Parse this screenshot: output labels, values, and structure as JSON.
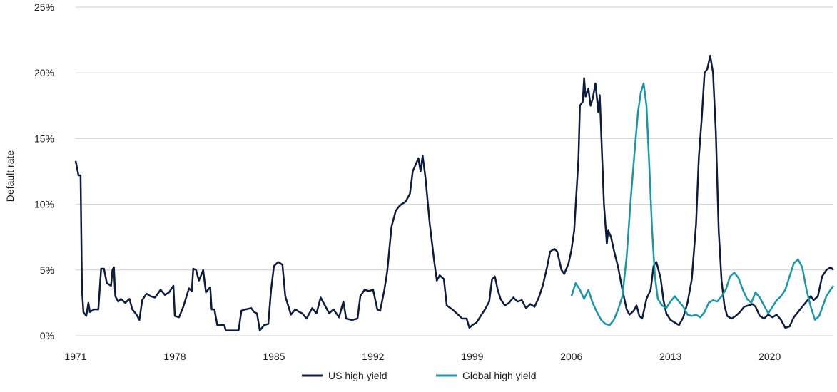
{
  "chart_data": {
    "type": "line",
    "title": "",
    "xlabel": "",
    "ylabel": "Default rate",
    "xlim": [
      1971,
      2024.5
    ],
    "ylim": [
      0,
      25
    ],
    "x_ticks": [
      "1971",
      "1978",
      "1985",
      "1992",
      "1999",
      "2006",
      "2013",
      "2020"
    ],
    "y_ticks": [
      "0%",
      "5%",
      "10%",
      "15%",
      "20%",
      "25%"
    ],
    "y_tick_values": [
      0,
      5,
      10,
      15,
      20,
      25
    ],
    "x_tick_values": [
      1971,
      1978,
      1985,
      1992,
      1999,
      2006,
      2013,
      2020
    ],
    "grid": "horizontal",
    "legend_position": "bottom-center",
    "series": [
      {
        "name": "US high yield",
        "color": "#0d1b3e",
        "points": [
          [
            1971.0,
            13.3
          ],
          [
            1971.2,
            12.2
          ],
          [
            1971.35,
            12.2
          ],
          [
            1971.45,
            3.5
          ],
          [
            1971.55,
            1.8
          ],
          [
            1971.75,
            1.5
          ],
          [
            1971.9,
            2.5
          ],
          [
            1972.0,
            1.8
          ],
          [
            1972.3,
            2.0
          ],
          [
            1972.6,
            2.0
          ],
          [
            1972.8,
            5.1
          ],
          [
            1973.0,
            5.1
          ],
          [
            1973.2,
            4.0
          ],
          [
            1973.5,
            3.8
          ],
          [
            1973.6,
            5.0
          ],
          [
            1973.7,
            5.2
          ],
          [
            1973.8,
            3.0
          ],
          [
            1974.0,
            2.6
          ],
          [
            1974.2,
            2.8
          ],
          [
            1974.5,
            2.5
          ],
          [
            1974.8,
            2.8
          ],
          [
            1975.0,
            2.0
          ],
          [
            1975.3,
            1.6
          ],
          [
            1975.5,
            1.2
          ],
          [
            1975.7,
            2.7
          ],
          [
            1976.0,
            3.2
          ],
          [
            1976.3,
            3.0
          ],
          [
            1976.6,
            2.9
          ],
          [
            1977.0,
            3.5
          ],
          [
            1977.3,
            3.1
          ],
          [
            1977.6,
            3.3
          ],
          [
            1977.9,
            3.8
          ],
          [
            1978.0,
            1.5
          ],
          [
            1978.3,
            1.4
          ],
          [
            1978.6,
            2.2
          ],
          [
            1979.0,
            3.6
          ],
          [
            1979.2,
            3.4
          ],
          [
            1979.3,
            5.1
          ],
          [
            1979.5,
            5.0
          ],
          [
            1979.7,
            4.2
          ],
          [
            1979.9,
            4.7
          ],
          [
            1980.0,
            5.0
          ],
          [
            1980.2,
            3.3
          ],
          [
            1980.5,
            3.7
          ],
          [
            1980.6,
            2.0
          ],
          [
            1980.8,
            2.0
          ],
          [
            1981.0,
            0.8
          ],
          [
            1981.5,
            0.8
          ],
          [
            1981.6,
            0.4
          ],
          [
            1982.0,
            0.4
          ],
          [
            1982.5,
            0.4
          ],
          [
            1982.7,
            1.9
          ],
          [
            1983.0,
            2.0
          ],
          [
            1983.4,
            2.1
          ],
          [
            1983.6,
            1.8
          ],
          [
            1983.8,
            1.7
          ],
          [
            1984.0,
            0.4
          ],
          [
            1984.3,
            0.8
          ],
          [
            1984.6,
            0.9
          ],
          [
            1984.8,
            3.5
          ],
          [
            1985.0,
            5.3
          ],
          [
            1985.3,
            5.6
          ],
          [
            1985.6,
            5.4
          ],
          [
            1985.8,
            3.0
          ],
          [
            1986.0,
            2.3
          ],
          [
            1986.2,
            1.6
          ],
          [
            1986.5,
            2.0
          ],
          [
            1986.8,
            1.8
          ],
          [
            1987.0,
            1.7
          ],
          [
            1987.3,
            1.3
          ],
          [
            1987.7,
            2.1
          ],
          [
            1988.0,
            1.7
          ],
          [
            1988.3,
            2.9
          ],
          [
            1988.6,
            2.3
          ],
          [
            1988.9,
            1.7
          ],
          [
            1989.2,
            2.0
          ],
          [
            1989.6,
            1.4
          ],
          [
            1989.9,
            2.6
          ],
          [
            1990.1,
            1.3
          ],
          [
            1990.5,
            1.2
          ],
          [
            1990.9,
            1.3
          ],
          [
            1991.1,
            3.0
          ],
          [
            1991.4,
            3.5
          ],
          [
            1991.7,
            3.4
          ],
          [
            1992.0,
            3.5
          ],
          [
            1992.3,
            2.0
          ],
          [
            1992.5,
            1.9
          ],
          [
            1992.8,
            3.5
          ],
          [
            1993.0,
            4.9
          ],
          [
            1993.3,
            8.3
          ],
          [
            1993.6,
            9.5
          ],
          [
            1993.8,
            9.8
          ],
          [
            1994.0,
            10.0
          ],
          [
            1994.3,
            10.2
          ],
          [
            1994.6,
            10.8
          ],
          [
            1994.8,
            12.5
          ],
          [
            1995.0,
            13.0
          ],
          [
            1995.2,
            13.5
          ],
          [
            1995.35,
            12.5
          ],
          [
            1995.5,
            13.7
          ],
          [
            1995.7,
            12.0
          ],
          [
            1996.0,
            8.5
          ],
          [
            1996.3,
            5.8
          ],
          [
            1996.5,
            4.2
          ],
          [
            1996.7,
            4.6
          ],
          [
            1997.0,
            4.3
          ],
          [
            1997.2,
            2.3
          ],
          [
            1997.6,
            2.0
          ],
          [
            1998.0,
            1.6
          ],
          [
            1998.3,
            1.3
          ],
          [
            1998.6,
            1.3
          ],
          [
            1998.8,
            0.6
          ],
          [
            1999.0,
            0.8
          ],
          [
            1999.3,
            1.0
          ],
          [
            1999.6,
            1.5
          ],
          [
            1999.9,
            2.0
          ],
          [
            2000.2,
            2.6
          ],
          [
            2000.4,
            4.3
          ],
          [
            2000.6,
            4.5
          ],
          [
            2000.8,
            3.5
          ],
          [
            2001.0,
            2.8
          ],
          [
            2001.3,
            2.3
          ],
          [
            2001.6,
            2.5
          ],
          [
            2001.9,
            2.9
          ],
          [
            2002.2,
            2.6
          ],
          [
            2002.5,
            2.7
          ],
          [
            2002.8,
            2.1
          ],
          [
            2003.1,
            2.4
          ],
          [
            2003.4,
            2.2
          ],
          [
            2003.7,
            2.9
          ],
          [
            2004.0,
            3.9
          ],
          [
            2004.3,
            5.3
          ],
          [
            2004.5,
            6.4
          ],
          [
            2004.8,
            6.6
          ],
          [
            2005.0,
            6.4
          ],
          [
            2005.3,
            5.0
          ],
          [
            2005.5,
            4.7
          ],
          [
            2005.8,
            5.5
          ],
          [
            2006.0,
            6.5
          ],
          [
            2006.2,
            8.0
          ],
          [
            2006.5,
            13.5
          ],
          [
            2006.6,
            17.5
          ],
          [
            2006.8,
            17.8
          ],
          [
            2006.9,
            19.6
          ],
          [
            2007.0,
            18.2
          ],
          [
            2007.2,
            18.8
          ],
          [
            2007.35,
            17.5
          ],
          [
            2007.5,
            18.0
          ],
          [
            2007.7,
            19.2
          ],
          [
            2007.9,
            17.0
          ],
          [
            2008.0,
            18.3
          ],
          [
            2008.3,
            10.0
          ],
          [
            2008.5,
            7.0
          ],
          [
            2008.6,
            8.0
          ],
          [
            2008.8,
            7.5
          ],
          [
            2009.0,
            6.5
          ],
          [
            2009.3,
            5.2
          ],
          [
            2009.6,
            3.5
          ],
          [
            2009.9,
            2.0
          ],
          [
            2010.1,
            1.6
          ],
          [
            2010.4,
            1.9
          ],
          [
            2010.6,
            2.3
          ],
          [
            2010.8,
            1.5
          ],
          [
            2011.0,
            1.3
          ],
          [
            2011.3,
            2.8
          ],
          [
            2011.6,
            3.5
          ],
          [
            2011.8,
            5.3
          ],
          [
            2012.0,
            5.6
          ],
          [
            2012.3,
            4.4
          ],
          [
            2012.5,
            2.7
          ],
          [
            2012.7,
            1.7
          ],
          [
            2013.0,
            1.2
          ],
          [
            2013.3,
            1.0
          ],
          [
            2013.6,
            0.8
          ],
          [
            2013.9,
            1.4
          ],
          [
            2014.2,
            2.5
          ],
          [
            2014.5,
            4.3
          ],
          [
            2014.8,
            8.5
          ],
          [
            2015.0,
            13.6
          ],
          [
            2015.2,
            16.5
          ],
          [
            2015.4,
            20.0
          ],
          [
            2015.6,
            20.3
          ],
          [
            2015.8,
            21.3
          ],
          [
            2016.0,
            20.0
          ],
          [
            2016.2,
            15.5
          ],
          [
            2016.4,
            8.0
          ],
          [
            2016.6,
            4.2
          ],
          [
            2016.8,
            2.3
          ],
          [
            2017.0,
            1.5
          ],
          [
            2017.3,
            1.3
          ],
          [
            2017.6,
            1.5
          ],
          [
            2017.9,
            1.8
          ],
          [
            2018.2,
            2.2
          ],
          [
            2018.5,
            2.3
          ],
          [
            2018.8,
            2.4
          ],
          [
            2019.0,
            2.2
          ],
          [
            2019.3,
            1.5
          ],
          [
            2019.6,
            1.3
          ],
          [
            2019.9,
            1.6
          ],
          [
            2020.2,
            1.4
          ],
          [
            2020.5,
            1.6
          ],
          [
            2020.8,
            1.2
          ],
          [
            2021.1,
            0.6
          ],
          [
            2021.4,
            0.7
          ],
          [
            2021.7,
            1.4
          ],
          [
            2022.0,
            1.8
          ],
          [
            2022.3,
            2.2
          ],
          [
            2022.6,
            2.6
          ],
          [
            2022.9,
            3.0
          ],
          [
            2023.1,
            2.7
          ],
          [
            2023.4,
            3.0
          ],
          [
            2023.7,
            4.5
          ],
          [
            2024.0,
            5.0
          ],
          [
            2024.3,
            5.2
          ],
          [
            2024.5,
            5.0
          ]
        ]
      },
      {
        "name": "Global high yield",
        "color": "#1a96a8",
        "points": [
          [
            2006.0,
            3.0
          ],
          [
            2006.3,
            4.0
          ],
          [
            2006.6,
            3.5
          ],
          [
            2006.9,
            2.8
          ],
          [
            2007.2,
            3.5
          ],
          [
            2007.5,
            2.5
          ],
          [
            2007.8,
            1.8
          ],
          [
            2008.1,
            1.2
          ],
          [
            2008.4,
            0.9
          ],
          [
            2008.7,
            0.8
          ],
          [
            2009.0,
            1.2
          ],
          [
            2009.3,
            2.0
          ],
          [
            2009.6,
            3.0
          ],
          [
            2009.9,
            6.0
          ],
          [
            2010.2,
            10.5
          ],
          [
            2010.5,
            14.5
          ],
          [
            2010.7,
            17.0
          ],
          [
            2010.9,
            18.5
          ],
          [
            2011.1,
            19.2
          ],
          [
            2011.3,
            17.5
          ],
          [
            2011.5,
            13.0
          ],
          [
            2011.7,
            8.0
          ],
          [
            2011.9,
            4.5
          ],
          [
            2012.1,
            2.8
          ],
          [
            2012.4,
            2.3
          ],
          [
            2012.7,
            2.1
          ],
          [
            2013.0,
            2.6
          ],
          [
            2013.3,
            3.0
          ],
          [
            2013.6,
            2.6
          ],
          [
            2013.9,
            2.2
          ],
          [
            2014.2,
            1.6
          ],
          [
            2014.5,
            1.5
          ],
          [
            2014.8,
            1.6
          ],
          [
            2015.1,
            1.4
          ],
          [
            2015.4,
            1.8
          ],
          [
            2015.7,
            2.5
          ],
          [
            2016.0,
            2.7
          ],
          [
            2016.3,
            2.6
          ],
          [
            2016.6,
            3.0
          ],
          [
            2016.9,
            3.5
          ],
          [
            2017.2,
            4.5
          ],
          [
            2017.5,
            4.8
          ],
          [
            2017.8,
            4.4
          ],
          [
            2018.1,
            3.5
          ],
          [
            2018.4,
            2.8
          ],
          [
            2018.7,
            2.5
          ],
          [
            2019.0,
            3.3
          ],
          [
            2019.3,
            2.9
          ],
          [
            2019.6,
            2.3
          ],
          [
            2019.9,
            1.7
          ],
          [
            2020.2,
            2.2
          ],
          [
            2020.5,
            2.7
          ],
          [
            2020.8,
            3.0
          ],
          [
            2021.1,
            3.5
          ],
          [
            2021.4,
            4.5
          ],
          [
            2021.7,
            5.5
          ],
          [
            2022.0,
            5.8
          ],
          [
            2022.3,
            5.2
          ],
          [
            2022.6,
            3.5
          ],
          [
            2022.9,
            2.2
          ],
          [
            2023.2,
            1.2
          ],
          [
            2023.5,
            1.5
          ],
          [
            2023.8,
            2.4
          ],
          [
            2024.0,
            3.0
          ],
          [
            2024.3,
            3.5
          ],
          [
            2024.5,
            3.8
          ]
        ]
      }
    ]
  }
}
